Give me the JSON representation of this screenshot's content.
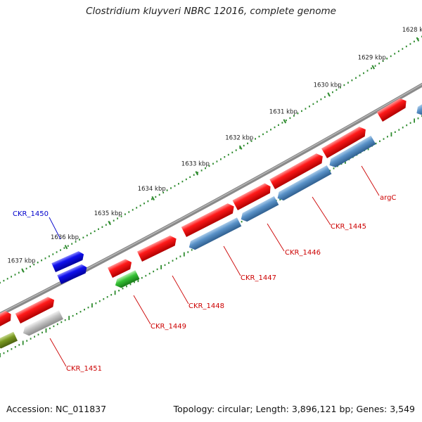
{
  "title": "Clostridium kluyveri NBRC 12016, complete genome",
  "footer": {
    "accession": "Accession: NC_011837",
    "summary": "Topology: circular; Length: 3,896,121 bp; Genes: 3,549"
  },
  "ruler": {
    "ticks": [
      {
        "kbp": 1628,
        "label": "1628 kbp"
      },
      {
        "kbp": 1629,
        "label": "1629 kbp"
      },
      {
        "kbp": 1630,
        "label": "1630 kbp"
      },
      {
        "kbp": 1631,
        "label": "1631 kbp"
      },
      {
        "kbp": 1632,
        "label": "1632 kbp"
      },
      {
        "kbp": 1633,
        "label": "1633 kbp"
      },
      {
        "kbp": 1634,
        "label": "1634 kbp"
      },
      {
        "kbp": 1635,
        "label": "1635 kbp"
      },
      {
        "kbp": 1636,
        "label": "1636 kbp"
      },
      {
        "kbp": 1637,
        "label": "1637 kbp"
      }
    ]
  },
  "colors": {
    "backbone": "#7f7f7f",
    "gene_red": "#ff0000",
    "gene_blue": "#0000ee",
    "gene_green": "#33bb33",
    "gene_olive": "#779922",
    "gene_gray": "#bbbbbb",
    "gene_steel": "#4f88c0",
    "ruler": "#2e8b2e",
    "label_red": "#cc0000",
    "label_blue": "#0000cc"
  },
  "gene_labels": [
    {
      "name": "argC",
      "color": "#cc0000"
    },
    {
      "name": "CKR_1445",
      "color": "#cc0000"
    },
    {
      "name": "CKR_1446",
      "color": "#cc0000"
    },
    {
      "name": "CKR_1447",
      "color": "#cc0000"
    },
    {
      "name": "CKR_1448",
      "color": "#cc0000"
    },
    {
      "name": "CKR_1449",
      "color": "#cc0000"
    },
    {
      "name": "CKR_1450",
      "color": "#0000cc"
    },
    {
      "name": "CKR_1451",
      "color": "#cc0000"
    }
  ]
}
